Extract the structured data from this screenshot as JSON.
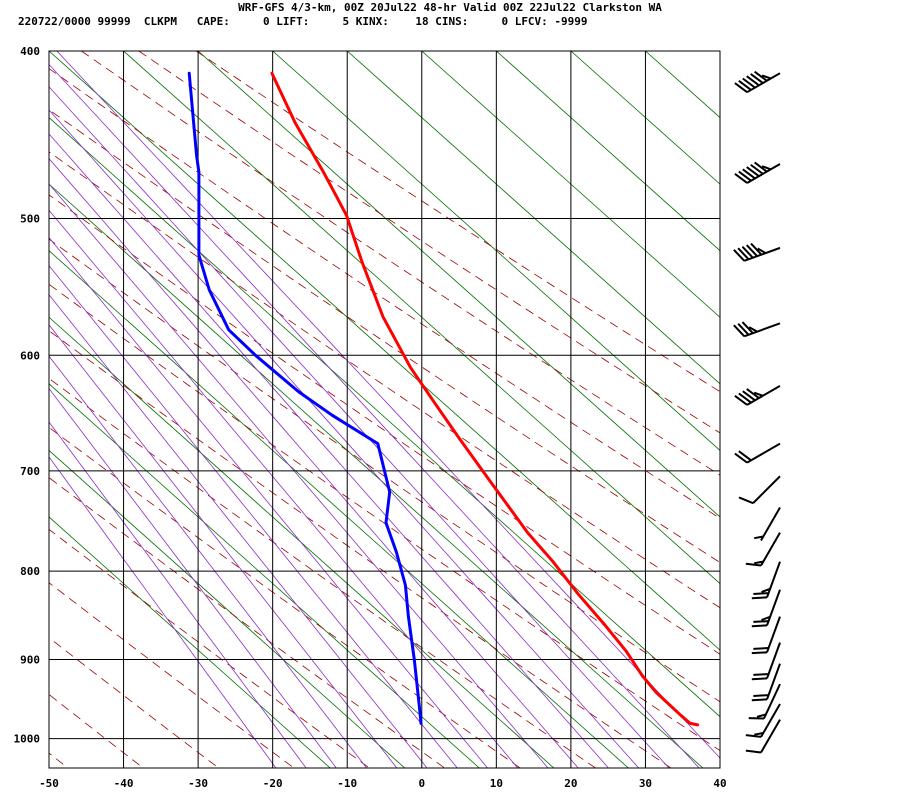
{
  "title": "WRF-GFS 4/3-km, 00Z 20Jul22 48-hr Valid 00Z 22Jul22 Clarkston WA",
  "info_line": "220722/0000 99999  CLKPM   CAPE:     0 LIFT:     5 KINX:    18 CINS:     0 LFCV: -9999",
  "colors": {
    "temperature": "#ff0000",
    "dewpoint": "#0000ff",
    "dry_adiabat": "#a00000",
    "moist_adiabat": "#8c2ec8",
    "isotherm_skew": "#007000",
    "grid": "#000000"
  },
  "chart_data": {
    "type": "skew-t",
    "x_ticks": [
      "-50",
      "-40",
      "-30",
      "-20",
      "-10",
      "0",
      "10",
      "20",
      "30",
      "40"
    ],
    "y_ticks": [
      "400",
      "500",
      "600",
      "700",
      "800",
      "900",
      "1000"
    ],
    "xlim": [
      -50,
      40
    ],
    "ylim": [
      1040,
      400
    ],
    "y_scale": "log-pressure",
    "grid": true,
    "series": [
      {
        "key": "temperature",
        "points": [
          {
            "x": -20.1,
            "y": 412
          },
          {
            "x": -17.0,
            "y": 440
          },
          {
            "x": -13.2,
            "y": 470
          },
          {
            "x": -11.5,
            "y": 485
          },
          {
            "x": -10.1,
            "y": 498
          },
          {
            "x": -8.0,
            "y": 530
          },
          {
            "x": -5.2,
            "y": 570
          },
          {
            "x": -1.5,
            "y": 610
          },
          {
            "x": 1.8,
            "y": 640
          },
          {
            "x": 5.0,
            "y": 670
          },
          {
            "x": 9.2,
            "y": 710
          },
          {
            "x": 14.2,
            "y": 760
          },
          {
            "x": 17.6,
            "y": 790
          },
          {
            "x": 21.0,
            "y": 825
          },
          {
            "x": 24.6,
            "y": 860
          },
          {
            "x": 27.4,
            "y": 890
          },
          {
            "x": 29.6,
            "y": 920
          },
          {
            "x": 31.4,
            "y": 940
          },
          {
            "x": 34.8,
            "y": 970
          },
          {
            "x": 36.0,
            "y": 980
          },
          {
            "x": 37.0,
            "y": 982
          }
        ]
      },
      {
        "key": "dewpoint",
        "points": [
          {
            "x": -31.2,
            "y": 412
          },
          {
            "x": -30.2,
            "y": 460
          },
          {
            "x": -29.9,
            "y": 470
          },
          {
            "x": -29.9,
            "y": 525
          },
          {
            "x": -28.5,
            "y": 550
          },
          {
            "x": -25.9,
            "y": 580
          },
          {
            "x": -22.3,
            "y": 600
          },
          {
            "x": -16.5,
            "y": 630
          },
          {
            "x": -12.0,
            "y": 650
          },
          {
            "x": -5.9,
            "y": 675
          },
          {
            "x": -4.3,
            "y": 720
          },
          {
            "x": -4.8,
            "y": 750
          },
          {
            "x": -3.4,
            "y": 780
          },
          {
            "x": -2.2,
            "y": 815
          },
          {
            "x": -1.8,
            "y": 850
          },
          {
            "x": -1.0,
            "y": 900
          },
          {
            "x": -0.3,
            "y": 960
          },
          {
            "x": -0.1,
            "y": 980
          }
        ]
      }
    ],
    "wind_barbs": [
      {
        "p": 412,
        "dir_deg": 240,
        "speed_kt": 65
      },
      {
        "p": 465,
        "dir_deg": 240,
        "speed_kt": 65
      },
      {
        "p": 520,
        "dir_deg": 250,
        "speed_kt": 55
      },
      {
        "p": 575,
        "dir_deg": 250,
        "speed_kt": 35
      },
      {
        "p": 625,
        "dir_deg": 240,
        "speed_kt": 45
      },
      {
        "p": 675,
        "dir_deg": 240,
        "speed_kt": 20
      },
      {
        "p": 705,
        "dir_deg": 225,
        "speed_kt": 10
      },
      {
        "p": 735,
        "dir_deg": 210,
        "speed_kt": 5
      },
      {
        "p": 760,
        "dir_deg": 210,
        "speed_kt": 15
      },
      {
        "p": 790,
        "dir_deg": 200,
        "speed_kt": 25
      },
      {
        "p": 820,
        "dir_deg": 200,
        "speed_kt": 25
      },
      {
        "p": 850,
        "dir_deg": 200,
        "speed_kt": 20
      },
      {
        "p": 880,
        "dir_deg": 200,
        "speed_kt": 20
      },
      {
        "p": 905,
        "dir_deg": 200,
        "speed_kt": 20
      },
      {
        "p": 930,
        "dir_deg": 205,
        "speed_kt": 15
      },
      {
        "p": 955,
        "dir_deg": 210,
        "speed_kt": 15
      },
      {
        "p": 975,
        "dir_deg": 210,
        "speed_kt": 10
      }
    ]
  }
}
